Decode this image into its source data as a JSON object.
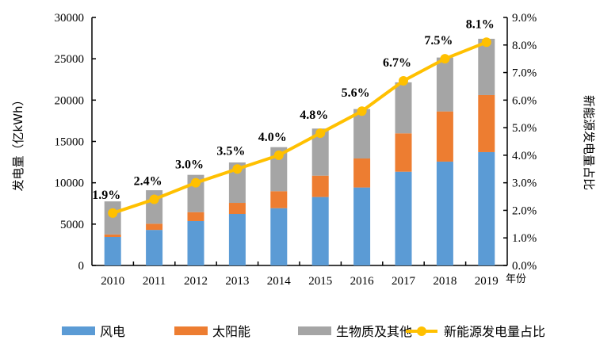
{
  "chart_data": {
    "type": "bar",
    "stacked": true,
    "categories": [
      "2010",
      "2011",
      "2012",
      "2013",
      "2014",
      "2015",
      "2016",
      "2017",
      "2018",
      "2019"
    ],
    "xlabel": "年份",
    "ylabel": "发电量（亿kWh）",
    "y2label": "新能源发电量占比",
    "ylim": [
      0,
      30000
    ],
    "yticks": [
      "0",
      "5000",
      "10000",
      "15000",
      "20000",
      "25000",
      "30000"
    ],
    "y2lim": [
      0,
      9
    ],
    "y2ticks": [
      "0.0%",
      "1.0%",
      "2.0%",
      "3.0%",
      "4.0%",
      "5.0%",
      "6.0%",
      "7.0%",
      "8.0%",
      "9.0%"
    ],
    "grid": false,
    "legend_position": "bottom",
    "series": [
      {
        "name": "风电",
        "type": "bar",
        "color": "#5B9BD5",
        "values": [
          3450,
          4300,
          5370,
          6230,
          6930,
          8280,
          9430,
          11340,
          12560,
          13710
        ]
      },
      {
        "name": "太阳能",
        "type": "bar",
        "color": "#ED7D31",
        "values": [
          300,
          750,
          1080,
          1340,
          2050,
          2580,
          3510,
          4640,
          6070,
          6900
        ]
      },
      {
        "name": "生物质及其他",
        "type": "bar",
        "color": "#A5A5A5",
        "values": [
          4000,
          4050,
          4510,
          4890,
          5330,
          5700,
          5980,
          6170,
          6520,
          6810
        ]
      },
      {
        "name": "新能源发电量占比",
        "type": "line",
        "axis": "right",
        "color": "#FFC000",
        "values": [
          1.9,
          2.4,
          3.0,
          3.5,
          4.0,
          4.8,
          5.6,
          6.7,
          7.5,
          8.1
        ],
        "labels": [
          "1.9%",
          "2.4%",
          "3.0%",
          "3.5%",
          "4.0%",
          "4.8%",
          "5.6%",
          "6.7%",
          "7.5%",
          "8.1%"
        ]
      }
    ]
  }
}
